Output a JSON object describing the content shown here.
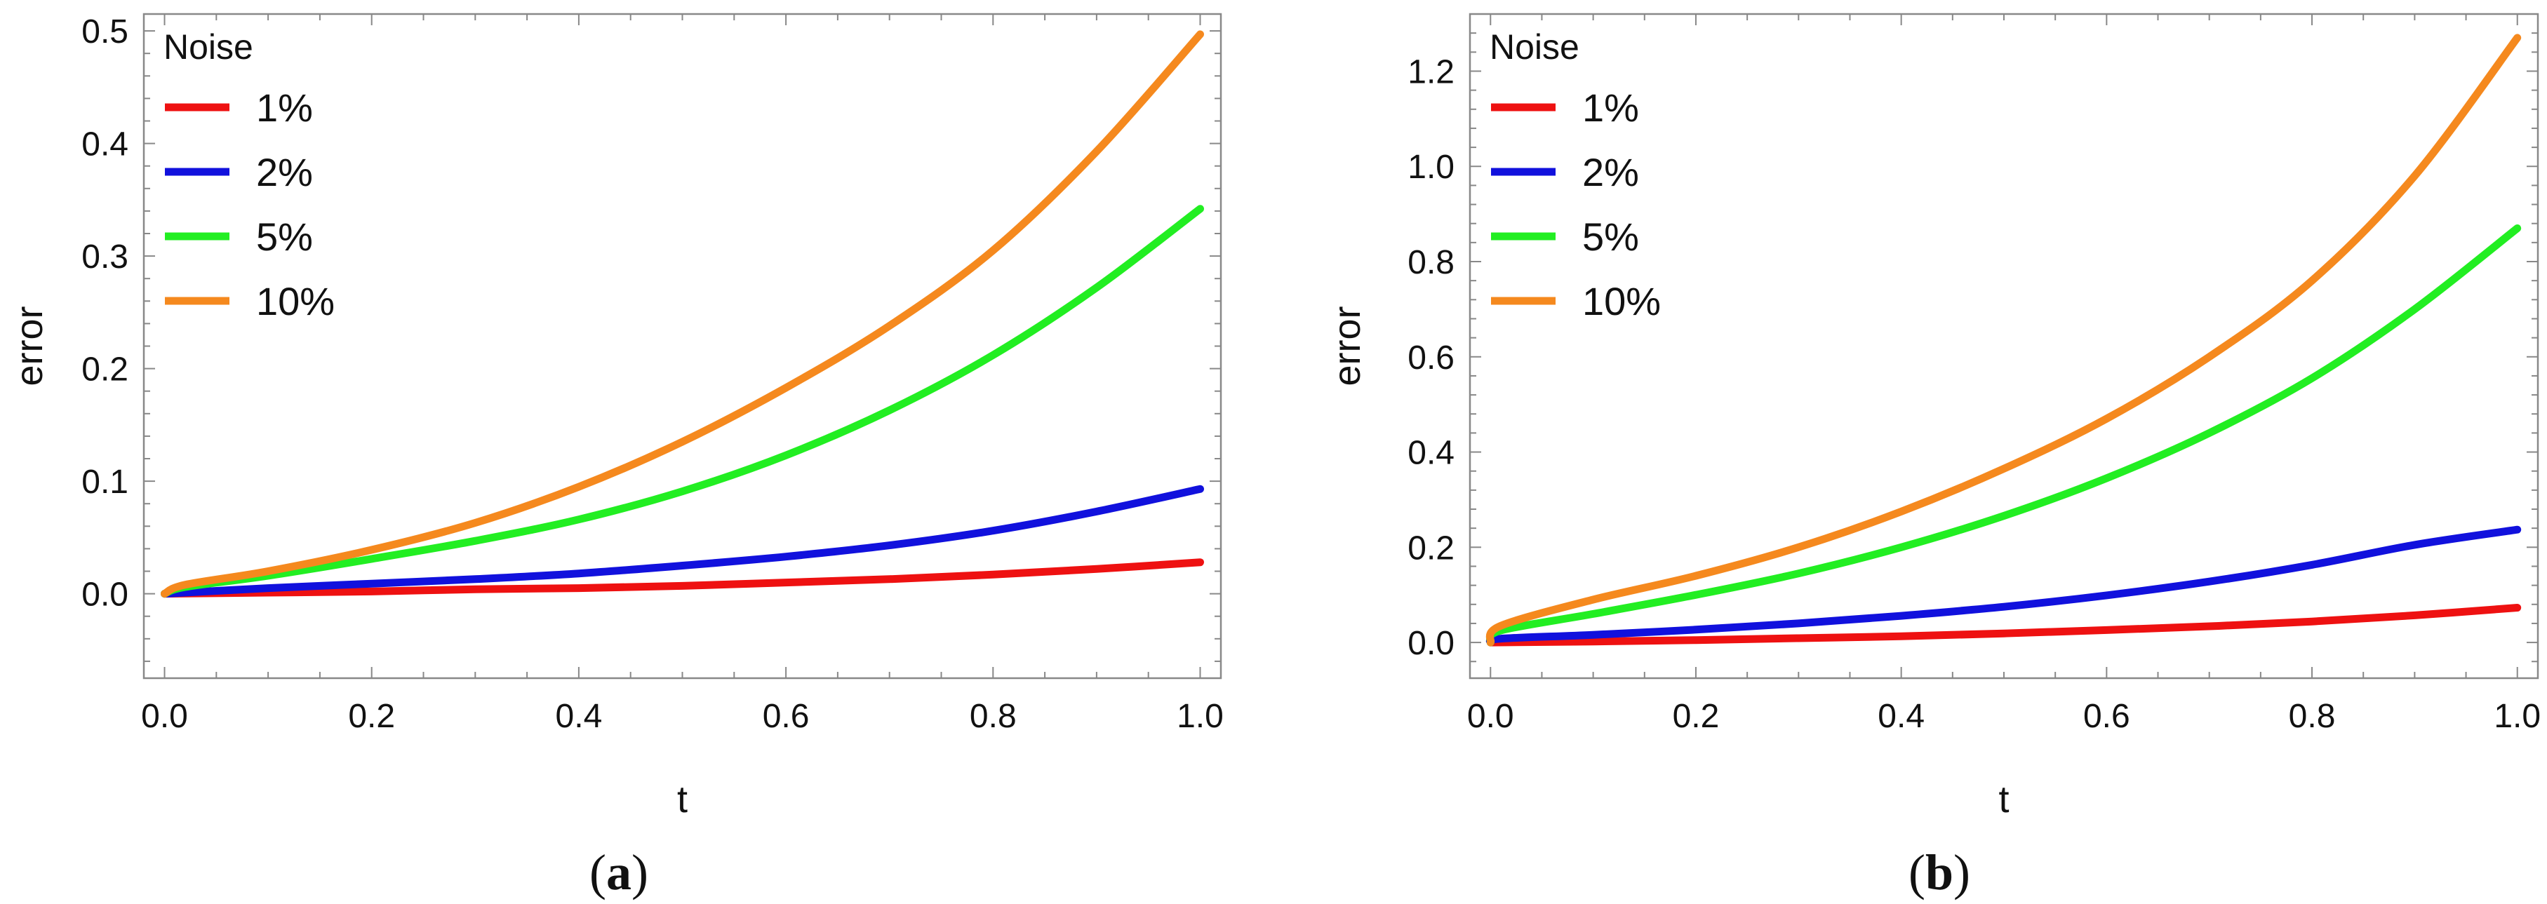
{
  "chart_data": [
    {
      "type": "line",
      "caption": "a",
      "xlabel": "t",
      "ylabel": "error",
      "xlim": [
        -0.02,
        1.02
      ],
      "ylim": [
        -0.075,
        0.515
      ],
      "xticks": [
        0.0,
        0.2,
        0.4,
        0.6,
        0.8,
        1.0
      ],
      "xtick_labels": [
        "0.0",
        "0.2",
        "0.4",
        "0.6",
        "0.8",
        "1.0"
      ],
      "yticks": [
        0.0,
        0.1,
        0.2,
        0.3,
        0.4,
        0.5
      ],
      "ytick_labels": [
        "0.0",
        "0.1",
        "0.2",
        "0.3",
        "0.4",
        "0.5"
      ],
      "legend": {
        "title": "Noise",
        "placement": "top-left"
      },
      "series": [
        {
          "name": "1%",
          "color": "#ee1111",
          "x": [
            0,
            0.1,
            0.2,
            0.3,
            0.4,
            0.5,
            0.6,
            0.7,
            0.8,
            0.9,
            1.0
          ],
          "values": [
            0,
            0.001,
            0.002,
            0.004,
            0.005,
            0.007,
            0.01,
            0.013,
            0.017,
            0.022,
            0.028
          ]
        },
        {
          "name": "2%",
          "color": "#1111dd",
          "x": [
            0,
            0.1,
            0.2,
            0.3,
            0.4,
            0.5,
            0.6,
            0.7,
            0.8,
            0.9,
            1.0
          ],
          "values": [
            0,
            0.005,
            0.009,
            0.013,
            0.018,
            0.025,
            0.033,
            0.043,
            0.056,
            0.073,
            0.093
          ]
        },
        {
          "name": "5%",
          "color": "#22ee22",
          "x": [
            0,
            0.02,
            0.1,
            0.2,
            0.3,
            0.4,
            0.5,
            0.6,
            0.7,
            0.8,
            0.9,
            1.0
          ],
          "values": [
            0,
            0.006,
            0.016,
            0.031,
            0.047,
            0.066,
            0.091,
            0.123,
            0.163,
            0.212,
            0.272,
            0.342
          ]
        },
        {
          "name": "10%",
          "color": "#f5891e",
          "x": [
            0,
            0.02,
            0.1,
            0.2,
            0.3,
            0.4,
            0.5,
            0.6,
            0.7,
            0.8,
            0.9,
            1.0
          ],
          "values": [
            0,
            0.008,
            0.02,
            0.039,
            0.063,
            0.095,
            0.135,
            0.183,
            0.238,
            0.305,
            0.393,
            0.497
          ]
        }
      ]
    },
    {
      "type": "line",
      "caption": "b",
      "xlabel": "t",
      "ylabel": "error",
      "xlim": [
        -0.02,
        1.02
      ],
      "ylim": [
        -0.075,
        1.32
      ],
      "xticks": [
        0.0,
        0.2,
        0.4,
        0.6,
        0.8,
        1.0
      ],
      "xtick_labels": [
        "0.0",
        "0.2",
        "0.4",
        "0.6",
        "0.8",
        "1.0"
      ],
      "yticks": [
        0.0,
        0.2,
        0.4,
        0.6,
        0.8,
        1.0,
        1.2
      ],
      "ytick_labels": [
        "0.0",
        "0.2",
        "0.4",
        "0.6",
        "0.8",
        "1.0",
        "1.2"
      ],
      "legend": {
        "title": "Noise",
        "placement": "top-left"
      },
      "series": [
        {
          "name": "1%",
          "color": "#ee1111",
          "x": [
            0,
            0.1,
            0.2,
            0.3,
            0.4,
            0.5,
            0.6,
            0.7,
            0.8,
            0.9,
            1.0
          ],
          "values": [
            0,
            0.002,
            0.005,
            0.009,
            0.013,
            0.019,
            0.026,
            0.034,
            0.044,
            0.057,
            0.073
          ]
        },
        {
          "name": "2%",
          "color": "#1111dd",
          "x": [
            0,
            0.01,
            0.1,
            0.2,
            0.3,
            0.4,
            0.5,
            0.6,
            0.7,
            0.8,
            0.9,
            1.0
          ],
          "values": [
            0,
            0.008,
            0.016,
            0.027,
            0.04,
            0.056,
            0.075,
            0.099,
            0.128,
            0.163,
            0.205,
            0.237
          ]
        },
        {
          "name": "5%",
          "color": "#22ee22",
          "x": [
            0,
            0.01,
            0.1,
            0.2,
            0.3,
            0.4,
            0.5,
            0.6,
            0.7,
            0.8,
            0.9,
            1.0
          ],
          "values": [
            0,
            0.025,
            0.06,
            0.1,
            0.145,
            0.2,
            0.266,
            0.345,
            0.44,
            0.555,
            0.7,
            0.87
          ]
        },
        {
          "name": "10%",
          "color": "#f5891e",
          "x": [
            0,
            0.01,
            0.1,
            0.2,
            0.3,
            0.4,
            0.5,
            0.6,
            0.7,
            0.8,
            0.9,
            1.0
          ],
          "values": [
            0,
            0.035,
            0.09,
            0.14,
            0.2,
            0.275,
            0.365,
            0.47,
            0.6,
            0.76,
            0.98,
            1.27
          ]
        }
      ]
    }
  ]
}
